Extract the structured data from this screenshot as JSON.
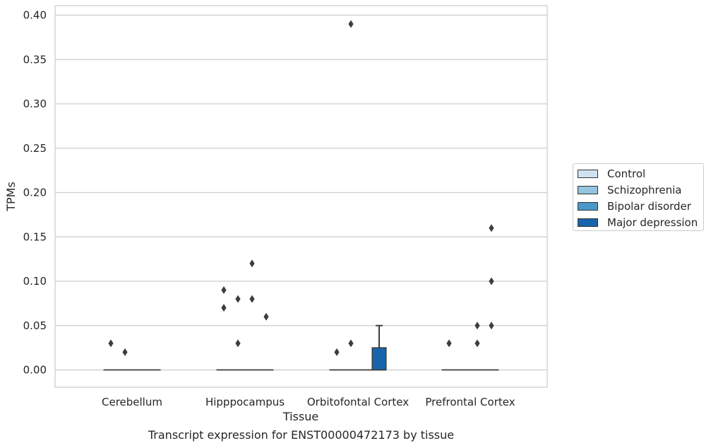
{
  "caption": "Transcript expression for ENST00000472173 by tissue",
  "chart_data": {
    "type": "box",
    "xlabel": "Tissue",
    "ylabel": "TPMs",
    "ylim": [
      -0.019,
      0.41
    ],
    "yticks": [
      "0.00",
      "0.05",
      "0.10",
      "0.15",
      "0.20",
      "0.25",
      "0.30",
      "0.35",
      "0.40"
    ],
    "categories": [
      "Cerebellum",
      "Hipppocampus",
      "Orbitofontal Cortex",
      "Prefrontal Cortex"
    ],
    "grid": "horizontal",
    "legend_position": "right",
    "series": [
      {
        "name": "Control",
        "color": "#d0e1f2",
        "boxes": [
          {
            "category": "Cerebellum",
            "q1": 0,
            "median": 0,
            "q3": 0,
            "whisker_low": 0,
            "whisker_high": 0,
            "outliers": [
              0.03
            ]
          },
          {
            "category": "Hipppocampus",
            "q1": 0,
            "median": 0,
            "q3": 0,
            "whisker_low": 0,
            "whisker_high": 0,
            "outliers": [
              0.09,
              0.07
            ]
          },
          {
            "category": "Orbitofontal Cortex",
            "q1": 0,
            "median": 0,
            "q3": 0,
            "whisker_low": 0,
            "whisker_high": 0,
            "outliers": [
              0.02
            ]
          },
          {
            "category": "Prefrontal Cortex",
            "q1": 0,
            "median": 0,
            "q3": 0,
            "whisker_low": 0,
            "whisker_high": 0,
            "outliers": [
              0.03
            ]
          }
        ]
      },
      {
        "name": "Schizophrenia",
        "color": "#94c4df",
        "boxes": [
          {
            "category": "Cerebellum",
            "q1": 0,
            "median": 0,
            "q3": 0,
            "whisker_low": 0,
            "whisker_high": 0,
            "outliers": [
              0.02
            ]
          },
          {
            "category": "Hipppocampus",
            "q1": 0,
            "median": 0,
            "q3": 0,
            "whisker_low": 0,
            "whisker_high": 0,
            "outliers": [
              0.08,
              0.03
            ]
          },
          {
            "category": "Orbitofontal Cortex",
            "q1": 0,
            "median": 0,
            "q3": 0,
            "whisker_low": 0,
            "whisker_high": 0,
            "outliers": [
              0.03,
              0.39
            ]
          },
          {
            "category": "Prefrontal Cortex",
            "q1": 0,
            "median": 0,
            "q3": 0,
            "whisker_low": 0,
            "whisker_high": 0,
            "outliers": []
          }
        ]
      },
      {
        "name": "Bipolar disorder",
        "color": "#4a98c9",
        "boxes": [
          {
            "category": "Cerebellum",
            "q1": 0,
            "median": 0,
            "q3": 0,
            "whisker_low": 0,
            "whisker_high": 0,
            "outliers": []
          },
          {
            "category": "Hipppocampus",
            "q1": 0,
            "median": 0,
            "q3": 0,
            "whisker_low": 0,
            "whisker_high": 0,
            "outliers": [
              0.12,
              0.08
            ]
          },
          {
            "category": "Orbitofontal Cortex",
            "q1": 0,
            "median": 0,
            "q3": 0,
            "whisker_low": 0,
            "whisker_high": 0,
            "outliers": []
          },
          {
            "category": "Prefrontal Cortex",
            "q1": 0,
            "median": 0,
            "q3": 0,
            "whisker_low": 0,
            "whisker_high": 0,
            "outliers": [
              0.05,
              0.03
            ]
          }
        ]
      },
      {
        "name": "Major depression",
        "color": "#1764ab",
        "boxes": [
          {
            "category": "Cerebellum",
            "q1": 0,
            "median": 0,
            "q3": 0,
            "whisker_low": 0,
            "whisker_high": 0,
            "outliers": []
          },
          {
            "category": "Hipppocampus",
            "q1": 0,
            "median": 0,
            "q3": 0,
            "whisker_low": 0,
            "whisker_high": 0,
            "outliers": [
              0.06
            ]
          },
          {
            "category": "Orbitofontal Cortex",
            "q1": 0,
            "median": 0,
            "q3": 0.025,
            "whisker_low": 0,
            "whisker_high": 0.05,
            "outliers": []
          },
          {
            "category": "Prefrontal Cortex",
            "q1": 0,
            "median": 0,
            "q3": 0,
            "whisker_low": 0,
            "whisker_high": 0,
            "outliers": [
              0.16,
              0.1,
              0.05
            ]
          }
        ]
      }
    ]
  }
}
